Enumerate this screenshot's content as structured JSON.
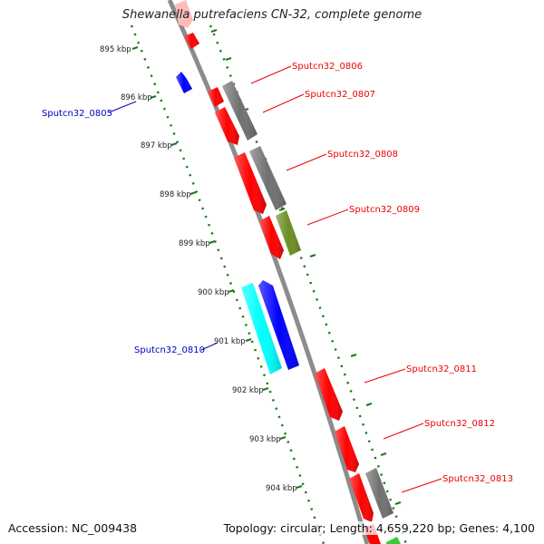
{
  "title": "Shewanella putrefaciens CN-32, complete genome",
  "accession": "Accession: NC_009438",
  "summary": "Topology: circular; Length: 4,659,220 bp; Genes: 4,100",
  "scale_labels": [
    "895 kbp",
    "896 kbp",
    "897 kbp",
    "898 kbp",
    "899 kbp",
    "900 kbp",
    "901 kbp",
    "902 kbp",
    "903 kbp",
    "904 kbp"
  ],
  "gene_labels": [
    {
      "text": "Sputcn32_0806",
      "color": "#ee0000"
    },
    {
      "text": "Sputcn32_0807",
      "color": "#ee0000"
    },
    {
      "text": "Sputcn32_0808",
      "color": "#ee0000"
    },
    {
      "text": "Sputcn32_0809",
      "color": "#ee0000"
    },
    {
      "text": "Sputcn32_0811",
      "color": "#ee0000"
    },
    {
      "text": "Sputcn32_0812",
      "color": "#ee0000"
    },
    {
      "text": "Sputcn32_0813",
      "color": "#ee0000"
    },
    {
      "text": "Sputcn32_0805",
      "color": "#0000bb"
    },
    {
      "text": "Sputcn32_0810",
      "color": "#0000bb"
    }
  ],
  "colors": {
    "forward_cds": "#ff0000",
    "reverse_cds": "#0000ff",
    "pseudo": "#ffbbbb",
    "gray_feature": "#707070",
    "olive_feature": "#6b8e23",
    "cyan_feature": "#00ffff",
    "green_feature": "#33cc33",
    "backbone": "#8c8c8c",
    "dots": "#1a7a1a"
  }
}
